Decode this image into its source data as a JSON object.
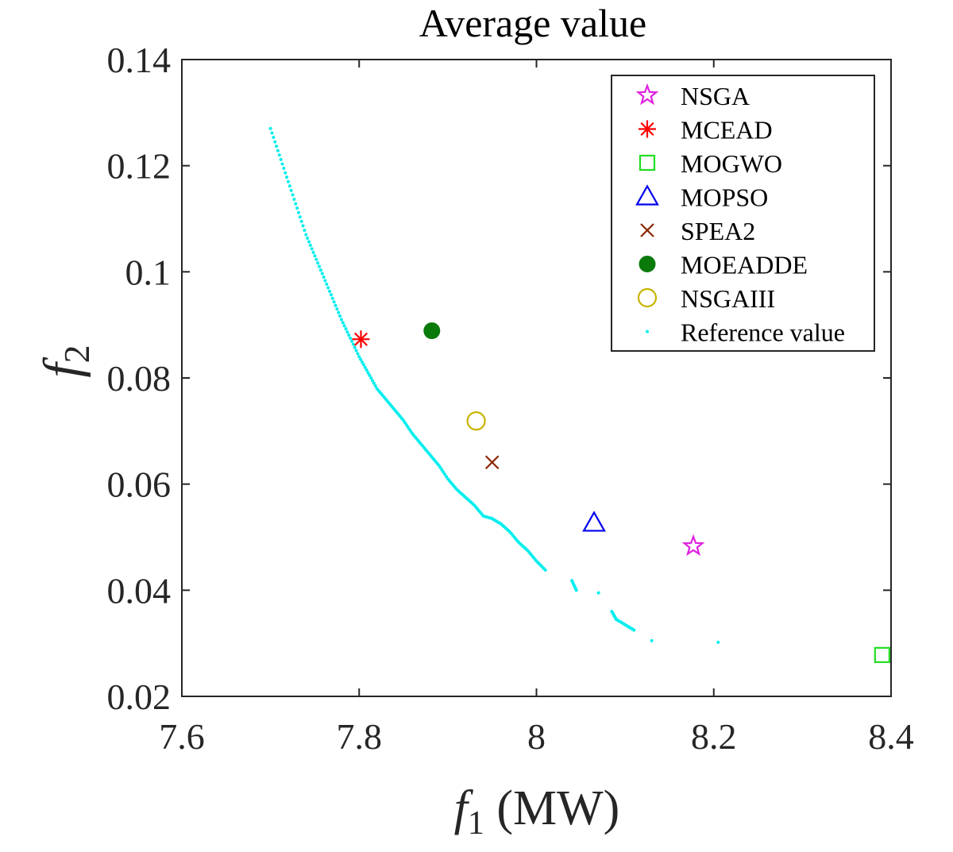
{
  "chart_data": {
    "type": "scatter",
    "title": "Average value",
    "xlabel": "f1 (MW)",
    "xlabel_main": "f",
    "xlabel_sub": "1",
    "xlabel_unit": "(MW)",
    "ylabel": "f2",
    "ylabel_main": "f",
    "ylabel_sub": "2",
    "xlim": [
      7.6,
      8.4
    ],
    "ylim": [
      0.02,
      0.14
    ],
    "xticks": [
      7.6,
      7.8,
      8.0,
      8.2,
      8.4
    ],
    "xtick_labels": [
      "7.6",
      "7.8",
      "8",
      "8.2",
      "8.4"
    ],
    "yticks": [
      0.02,
      0.04,
      0.06,
      0.08,
      0.1,
      0.12,
      0.14
    ],
    "ytick_labels": [
      "0.02",
      "0.04",
      "0.06",
      "0.08",
      "0.1",
      "0.12",
      "0.14"
    ],
    "grid": false,
    "legend_position": "top-right",
    "series": [
      {
        "name": "NSGA",
        "marker": "star",
        "color": "#e020e0",
        "x": [
          8.177
        ],
        "y": [
          0.0483
        ]
      },
      {
        "name": "MCEAD",
        "marker": "asterisk",
        "color": "#ff0000",
        "x": [
          7.802
        ],
        "y": [
          0.0873
        ]
      },
      {
        "name": "MOGWO",
        "marker": "square",
        "color": "#22dd22",
        "x": [
          8.39
        ],
        "y": [
          0.0278
        ]
      },
      {
        "name": "MOPSO",
        "marker": "triangle",
        "color": "#0000ee",
        "x": [
          8.065
        ],
        "y": [
          0.0527
        ]
      },
      {
        "name": "SPEA2",
        "marker": "x",
        "color": "#8b2500",
        "x": [
          7.95
        ],
        "y": [
          0.0641
        ]
      },
      {
        "name": "MOEADDE",
        "marker": "filled-circle",
        "color": "#0a7a0a",
        "x": [
          7.882
        ],
        "y": [
          0.0889
        ]
      },
      {
        "name": "NSGAIII",
        "marker": "circle",
        "color": "#c8b400",
        "x": [
          7.932
        ],
        "y": [
          0.0719
        ]
      },
      {
        "name": "Reference value",
        "marker": "dot",
        "color": "#00eeee",
        "x": [
          7.7,
          7.71,
          7.72,
          7.73,
          7.74,
          7.75,
          7.76,
          7.77,
          7.78,
          7.79,
          7.8,
          7.81,
          7.82,
          7.83,
          7.84,
          7.85,
          7.86,
          7.87,
          7.88,
          7.89,
          7.9,
          7.91,
          7.92,
          7.93,
          7.94,
          7.95,
          7.96,
          7.97,
          7.98,
          7.99,
          8.0,
          8.01,
          8.04,
          8.045,
          8.07,
          8.085,
          8.09,
          8.1,
          8.11,
          8.13,
          8.205
        ],
        "y": [
          0.127,
          0.122,
          0.117,
          0.112,
          0.107,
          0.103,
          0.099,
          0.095,
          0.091,
          0.0875,
          0.084,
          0.081,
          0.078,
          0.076,
          0.074,
          0.072,
          0.0695,
          0.0675,
          0.0655,
          0.0635,
          0.061,
          0.059,
          0.0575,
          0.056,
          0.054,
          0.0535,
          0.0525,
          0.051,
          0.049,
          0.0475,
          0.0455,
          0.0438,
          0.0418,
          0.04,
          0.0395,
          0.036,
          0.0345,
          0.0335,
          0.0325,
          0.0305,
          0.0302
        ]
      }
    ]
  }
}
